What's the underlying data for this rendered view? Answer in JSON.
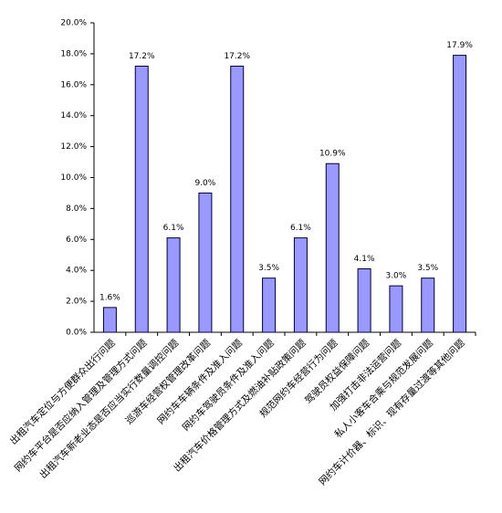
{
  "chart_data": {
    "type": "bar",
    "categories": [
      "出租汽车定位与方便群众出行问题",
      "网约车平台是否应纳入管理及管理方式问题",
      "出租汽车新老业态是否应当实行数量调控问题",
      "巡游车经营权管理改革问题",
      "网约车车辆条件及准入问题",
      "网约车驾驶员条件及准入问题",
      "出租汽车价格管理方式及燃油补贴政策问题",
      "规范网约车经营行为问题",
      "驾驶员权益保障问题",
      "加强打击非法运营问题",
      "私人小客车合乘与规范发展问题",
      "网约车计价器、标识、现有存量过渡等其他问题"
    ],
    "values": [
      1.6,
      17.2,
      6.1,
      9.0,
      17.2,
      3.5,
      6.1,
      10.9,
      4.1,
      3.0,
      3.5,
      17.9
    ],
    "value_labels": [
      "1.6%",
      "17.2%",
      "6.1%",
      "9.0%",
      "17.2%",
      "3.5%",
      "6.1%",
      "10.9%",
      "4.1%",
      "3.0%",
      "3.5%",
      "17.9%"
    ],
    "color": "#9999ff",
    "ylim": [
      0,
      20
    ],
    "yticks": [
      {
        "value": 0,
        "label": "0.0%"
      },
      {
        "value": 2,
        "label": "2.0%"
      },
      {
        "value": 4,
        "label": "4.0%"
      },
      {
        "value": 6,
        "label": "6.0%"
      },
      {
        "value": 8,
        "label": "8.0%"
      },
      {
        "value": 10,
        "label": "10.0%"
      },
      {
        "value": 12,
        "label": "12.0%"
      },
      {
        "value": 14,
        "label": "14.0%"
      },
      {
        "value": 16,
        "label": "16.0%"
      },
      {
        "value": 18,
        "label": "18.0%"
      },
      {
        "value": 20,
        "label": "20.0%"
      }
    ],
    "grid": false
  }
}
